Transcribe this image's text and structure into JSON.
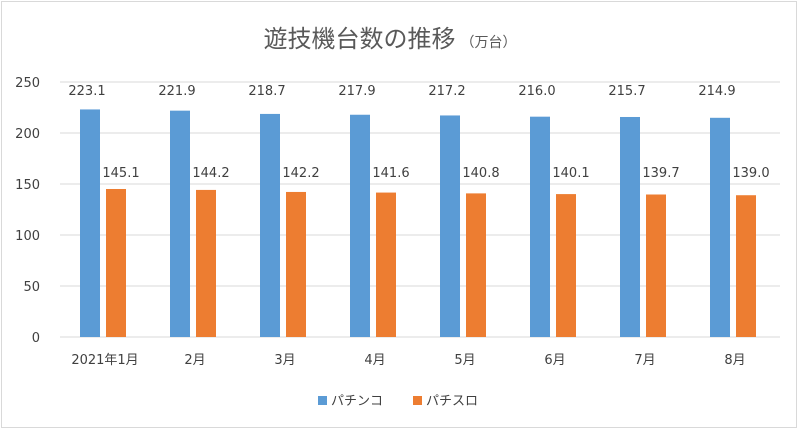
{
  "chart_data": {
    "type": "bar",
    "title": "遊技機台数の推移",
    "subtitle": "（万台）",
    "xlabel": "",
    "ylabel": "",
    "categories": [
      "2021年1月",
      "2月",
      "3月",
      "4月",
      "5月",
      "6月",
      "7月",
      "8月"
    ],
    "series": [
      {
        "name": "パチンコ",
        "color": "#5b9bd5",
        "values": [
          223.1,
          221.9,
          218.7,
          217.9,
          217.2,
          216.0,
          215.7,
          214.9
        ]
      },
      {
        "name": "パチスロ",
        "color": "#ed7d31",
        "values": [
          145.1,
          144.2,
          142.2,
          141.6,
          140.8,
          140.1,
          139.7,
          139.0
        ]
      }
    ],
    "ylim": [
      0,
      250
    ],
    "yticks": [
      0,
      50,
      100,
      150,
      200,
      250
    ],
    "grid": true,
    "legend": "bottom",
    "data_labels": true
  }
}
